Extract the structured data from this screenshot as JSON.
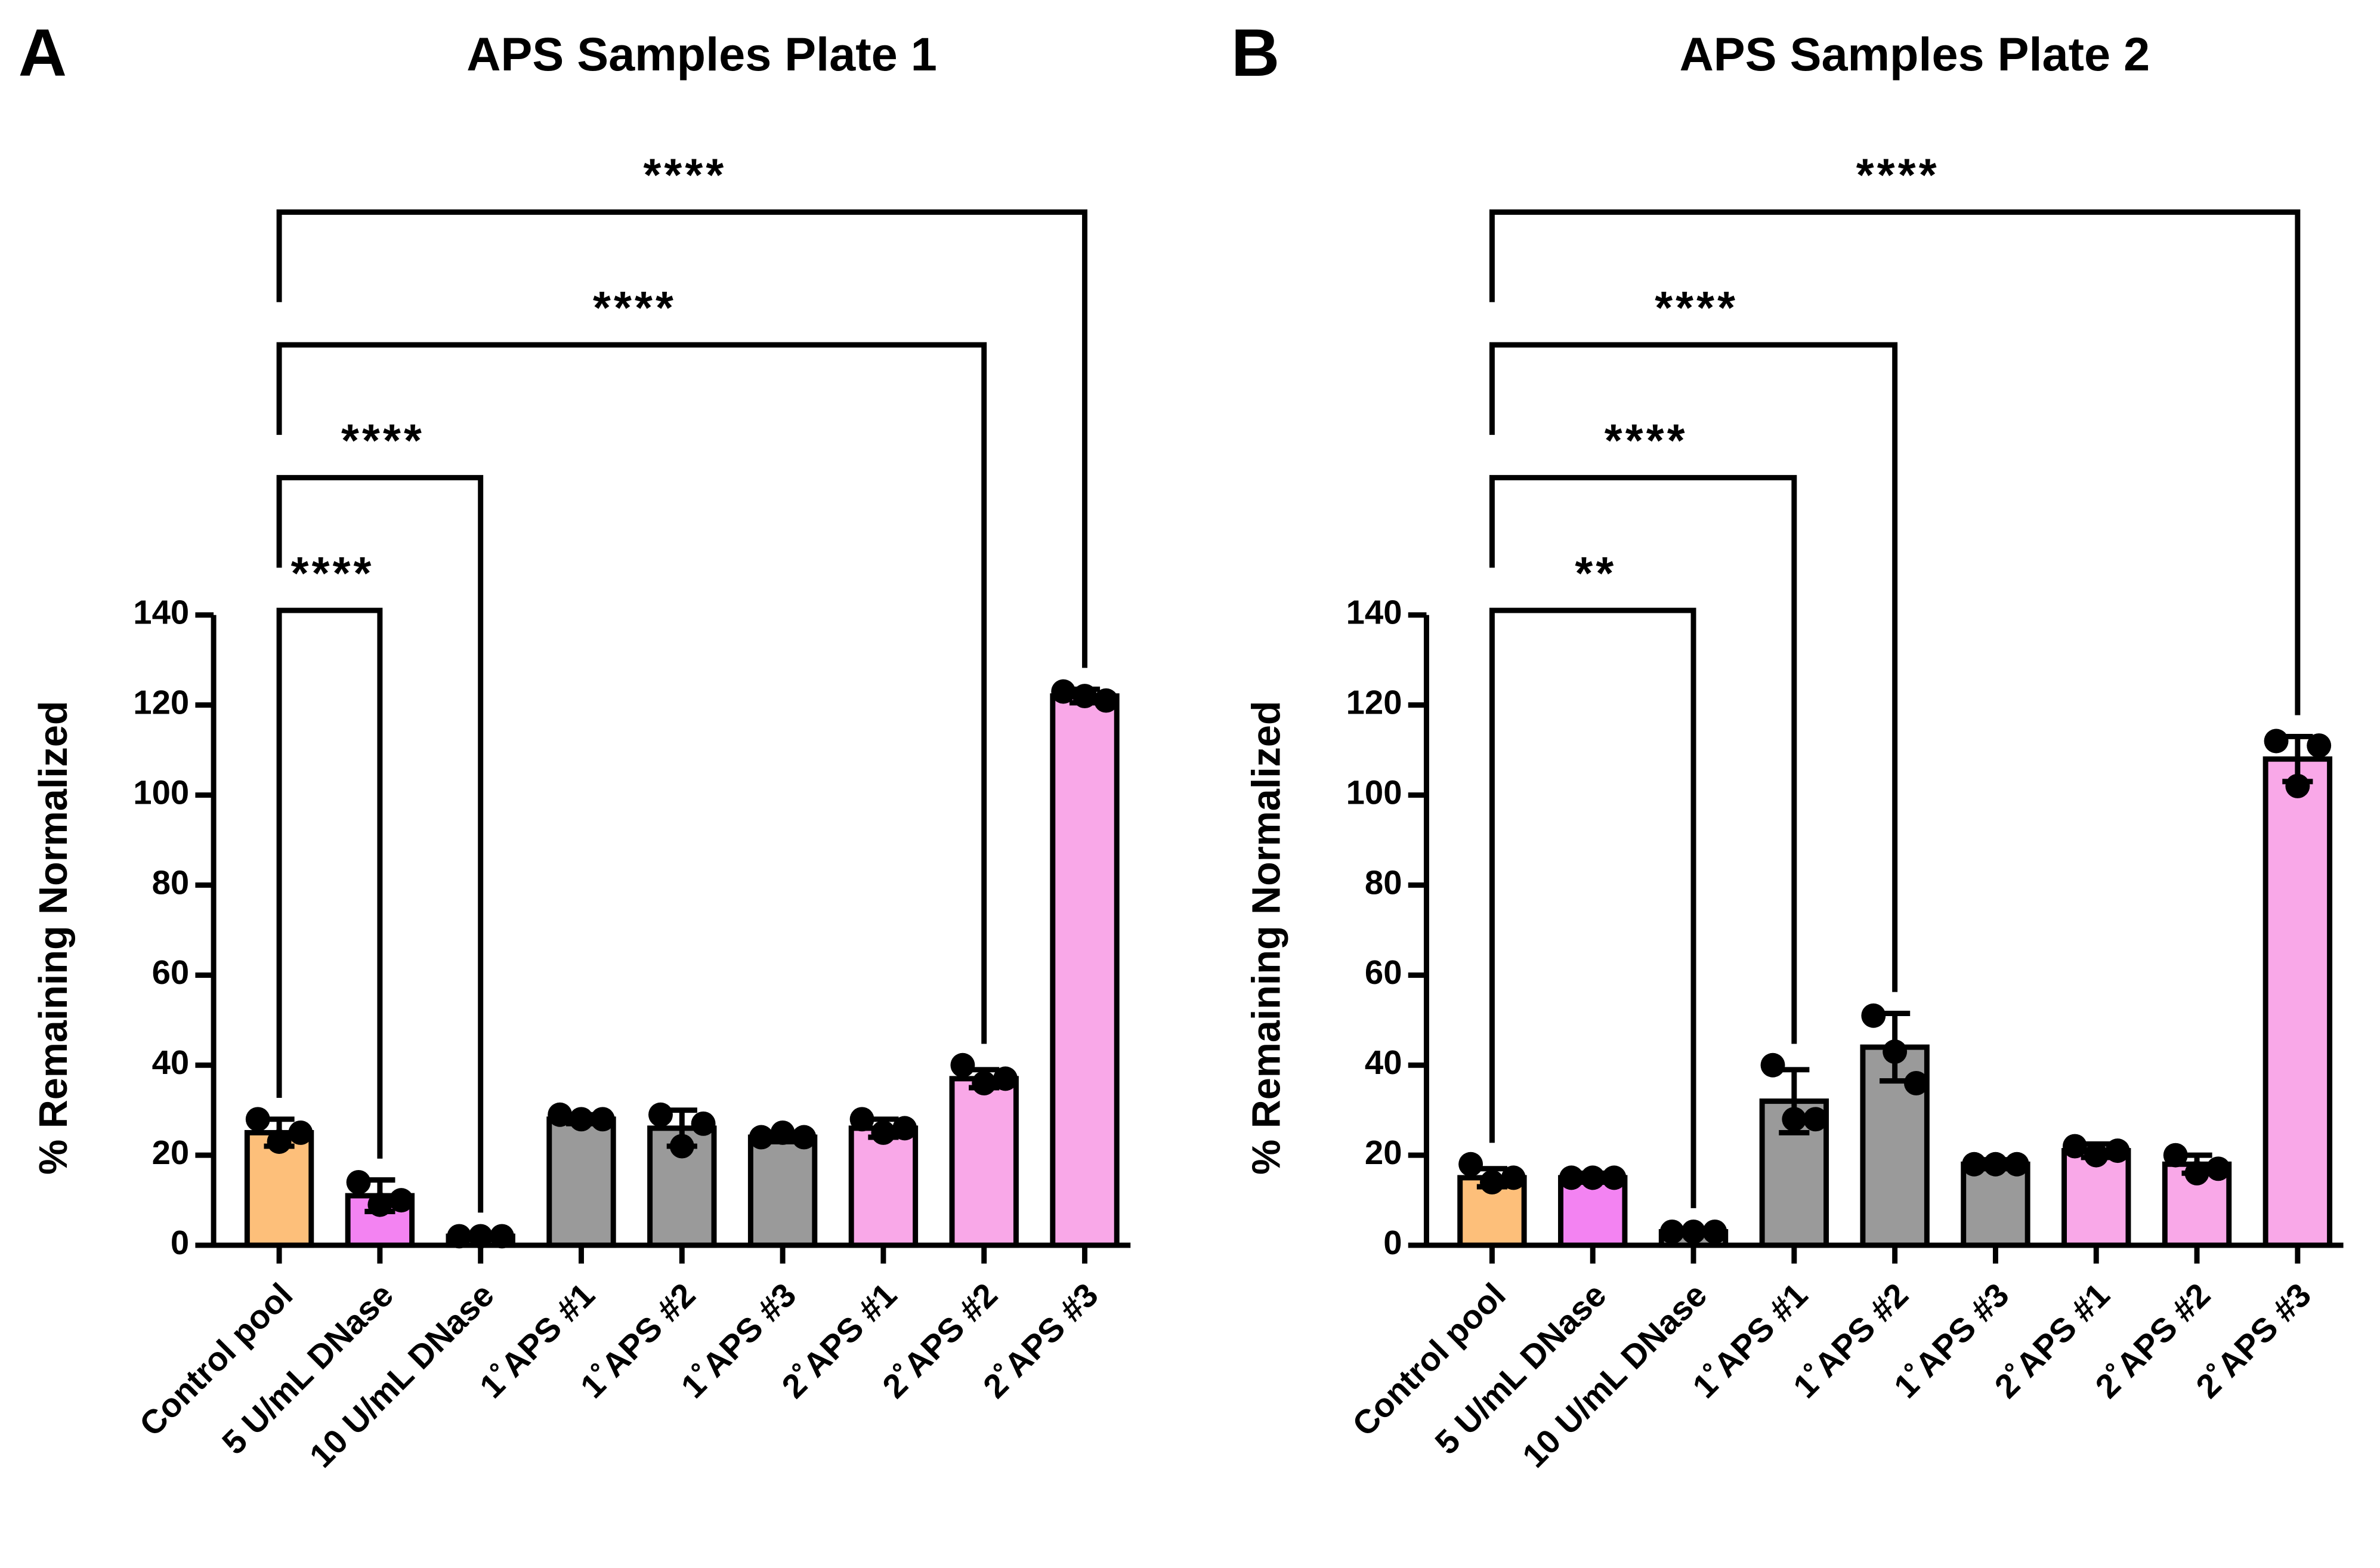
{
  "chart_data": [
    {
      "type": "bar",
      "label": "A",
      "title": "APS Samples Plate 1",
      "y_label": "% Remaining Normalized",
      "categories": [
        "Control pool",
        "5 U/mL DNase",
        "10 U/mL DNase",
        "1˚APS #1",
        "1˚APS #2",
        "1˚APS #3",
        "2˚APS #1",
        "2˚APS #2",
        "2˚APS #3"
      ],
      "values": [
        25,
        11,
        2,
        28,
        26,
        24,
        26,
        37,
        122
      ],
      "errors": [
        3,
        3.5,
        0.5,
        1,
        4,
        1,
        2,
        2,
        1.5
      ],
      "points": [
        [
          28,
          23,
          25
        ],
        [
          14,
          9,
          10
        ],
        [
          2,
          2,
          2
        ],
        [
          29,
          28,
          28
        ],
        [
          29,
          22,
          27
        ],
        [
          24,
          25,
          24
        ],
        [
          28,
          25,
          26
        ],
        [
          40,
          36,
          37
        ],
        [
          123,
          122,
          121
        ]
      ],
      "colors": [
        "#fdbf7a",
        "#f383f2",
        "#9a9a9a",
        "#9a9a9a",
        "#9a9a9a",
        "#9a9a9a",
        "#f9a8e8",
        "#f9a8e8",
        "#f9a8e8"
      ],
      "ylim": [
        0,
        140
      ],
      "yticks": [
        0,
        20,
        40,
        60,
        80,
        100,
        120,
        140
      ],
      "comparisons": [
        {
          "from": 0,
          "to": 1,
          "label": "****"
        },
        {
          "from": 0,
          "to": 2,
          "label": "****"
        },
        {
          "from": 0,
          "to": 7,
          "label": "****"
        },
        {
          "from": 0,
          "to": 8,
          "label": "****"
        }
      ]
    },
    {
      "type": "bar",
      "label": "B",
      "title": "APS Samples Plate 2",
      "y_label": "% Remaining Normalized",
      "categories": [
        "Control pool",
        "5 U/mL DNase",
        "10 U/mL DNase",
        "1˚APS #1",
        "1˚APS #2",
        "1˚APS #3",
        "2˚APS #1",
        "2˚APS #2",
        "2˚APS #3"
      ],
      "values": [
        15,
        15,
        3,
        32,
        44,
        18,
        21,
        18,
        108
      ],
      "errors": [
        2,
        1,
        0.5,
        7,
        7.5,
        1,
        1.5,
        2,
        5
      ],
      "points": [
        [
          18,
          14,
          15
        ],
        [
          15,
          15,
          15
        ],
        [
          3,
          3,
          3
        ],
        [
          40,
          28,
          28
        ],
        [
          51,
          43,
          36
        ],
        [
          18,
          18,
          18
        ],
        [
          22,
          20,
          21
        ],
        [
          20,
          16,
          17
        ],
        [
          112,
          102,
          111
        ]
      ],
      "colors": [
        "#fdbf7a",
        "#f383f2",
        "#9a9a9a",
        "#9a9a9a",
        "#9a9a9a",
        "#9a9a9a",
        "#f9a8e8",
        "#f9a8e8",
        "#f9a8e8"
      ],
      "ylim": [
        0,
        140
      ],
      "yticks": [
        0,
        20,
        40,
        60,
        80,
        100,
        120,
        140
      ],
      "comparisons": [
        {
          "from": 0,
          "to": 2,
          "label": "**"
        },
        {
          "from": 0,
          "to": 3,
          "label": "****"
        },
        {
          "from": 0,
          "to": 4,
          "label": "****"
        },
        {
          "from": 0,
          "to": 8,
          "label": "****"
        }
      ]
    }
  ]
}
